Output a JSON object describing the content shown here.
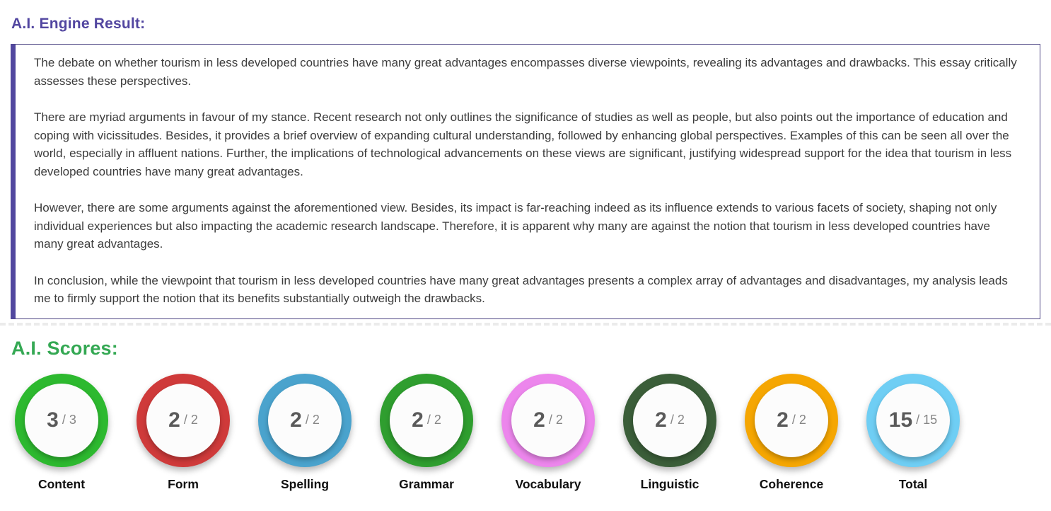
{
  "engine_result": {
    "heading": "A.I. Engine Result:",
    "heading_color": "#5246a0",
    "box_border_color": "#52489f"
  },
  "essay": {
    "paragraphs": [
      "The debate on whether tourism in less developed countries have many great advantages encompasses diverse viewpoints, revealing its advantages and drawbacks. This essay critically assesses these perspectives.",
      "There are myriad arguments in favour of my stance. Recent research not only outlines the significance of studies as well as people, but also points out the importance of education and coping with vicissitudes. Besides, it provides a brief overview of expanding cultural understanding, followed by enhancing global perspectives. Examples of this can be seen all over the world, especially in affluent nations. Further, the implications of technological advancements on these views are significant, justifying widespread support for the idea that tourism in less developed countries have many great advantages.",
      "However, there are some arguments against the aforementioned view. Besides, its impact is far-reaching indeed as its influence extends to various facets of society, shaping not only individual experiences but also impacting the academic research landscape. Therefore, it is apparent why many are against the notion that tourism in less developed countries have many great advantages.",
      "In conclusion, while the viewpoint that tourism in less developed countries have many great advantages presents a complex array of advantages and disadvantages, my analysis leads me to firmly support the notion that its benefits substantially outweigh the drawbacks."
    ]
  },
  "scores": {
    "heading": "A.I. Scores:",
    "heading_color": "#34a853",
    "separator": "/",
    "items": [
      {
        "label": "Content",
        "score": "3",
        "max": "3",
        "ring_color": "#2db92f"
      },
      {
        "label": "Form",
        "score": "2",
        "max": "2",
        "ring_color": "#cf3a3a"
      },
      {
        "label": "Spelling",
        "score": "2",
        "max": "2",
        "ring_color": "#4aa3cd"
      },
      {
        "label": "Grammar",
        "score": "2",
        "max": "2",
        "ring_color": "#2f9e2f"
      },
      {
        "label": "Vocabulary",
        "score": "2",
        "max": "2",
        "ring_color": "#ec86ec"
      },
      {
        "label": "Linguistic",
        "score": "2",
        "max": "2",
        "ring_color": "#3b5e39"
      },
      {
        "label": "Coherence",
        "score": "2",
        "max": "2",
        "ring_color": "#f5a602"
      },
      {
        "label": "Total",
        "score": "15",
        "max": "15",
        "ring_color": "#6fcef4"
      }
    ]
  }
}
